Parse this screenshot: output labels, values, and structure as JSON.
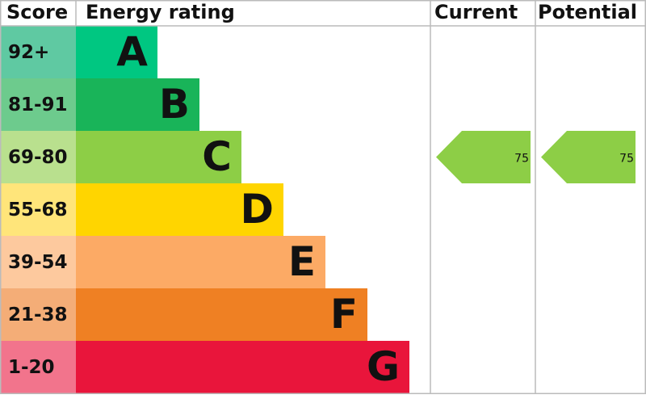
{
  "header": {
    "score": "Score",
    "rating": "Energy rating",
    "current": "Current",
    "potential": "Potential"
  },
  "rows": [
    {
      "score": "92+",
      "rating": "A",
      "color": "#00c781",
      "score_color": "#5fc9a2"
    },
    {
      "score": "81-91",
      "rating": "B",
      "color": "#19b459",
      "score_color": "#6dcb8d"
    },
    {
      "score": "69-80",
      "rating": "C",
      "color": "#8dce46",
      "score_color": "#b9e08e"
    },
    {
      "score": "55-68",
      "rating": "D",
      "color": "#ffd500",
      "score_color": "#ffe57a"
    },
    {
      "score": "39-54",
      "rating": "E",
      "color": "#fcaa65",
      "score_color": "#fdc99e"
    },
    {
      "score": "21-38",
      "rating": "F",
      "color": "#ef8023",
      "score_color": "#f4ad77"
    },
    {
      "score": "1-20",
      "rating": "G",
      "color": "#e9153b",
      "score_color": "#f2748c"
    }
  ],
  "current": 75,
  "potential": 75
}
